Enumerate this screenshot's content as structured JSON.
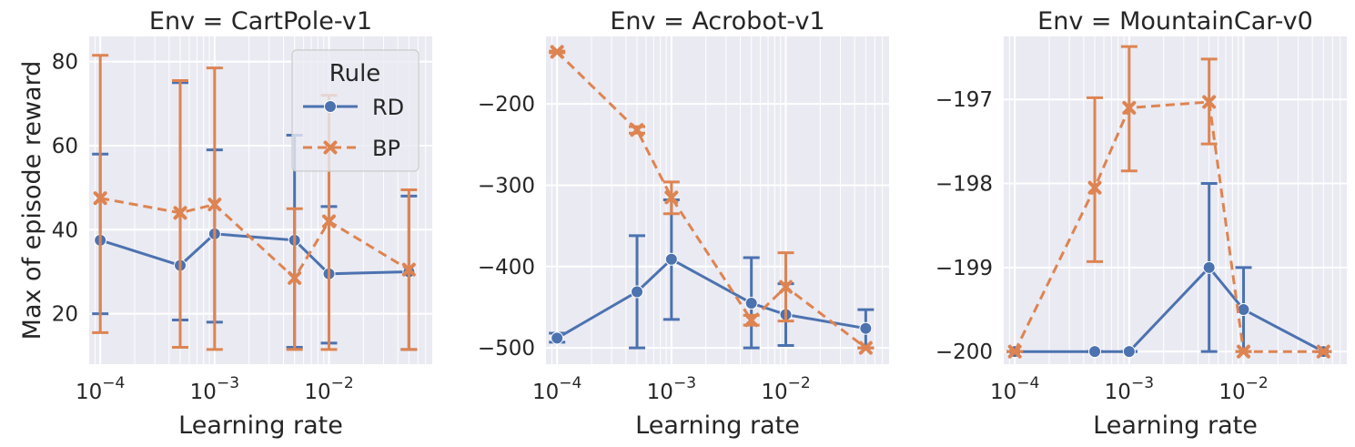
{
  "figure": {
    "ylabel": "Max of episode reward",
    "colors": {
      "RD": "#4c72b0",
      "BP": "#dd8452",
      "plot_bg": "#eaeaf2",
      "grid": "#ffffff"
    }
  },
  "legend": {
    "title": "Rule",
    "entries": [
      {
        "name": "RD",
        "marker": "circle",
        "style": "solid"
      },
      {
        "name": "BP",
        "marker": "x",
        "style": "dashed"
      }
    ],
    "placement": "upper-right of first panel"
  },
  "chart_data": [
    {
      "type": "line",
      "title": "Env = CartPole-v1",
      "xlabel": "Learning rate",
      "ylabel": "Max of episode reward",
      "xscale": "log",
      "xlim": [
        8e-05,
        0.08
      ],
      "ylim": [
        8,
        86
      ],
      "xticks": [
        {
          "value": 0.0001,
          "base": "10",
          "exp": "−4"
        },
        {
          "value": 0.001,
          "base": "10",
          "exp": "−3"
        },
        {
          "value": 0.01,
          "base": "10",
          "exp": "−2"
        }
      ],
      "yticks": [
        {
          "value": 20,
          "label": "20"
        },
        {
          "value": 40,
          "label": "40"
        },
        {
          "value": 60,
          "label": "60"
        },
        {
          "value": 80,
          "label": "80"
        }
      ],
      "x": [
        0.0001,
        0.0005,
        0.001,
        0.005,
        0.01,
        0.05
      ],
      "series": [
        {
          "name": "RD",
          "values": [
            37.5,
            31.5,
            39,
            37.5,
            29.5,
            30
          ],
          "err_low": [
            20,
            18.5,
            18,
            12,
            13,
            11.5
          ],
          "err_high": [
            58,
            75,
            59,
            62.5,
            45.5,
            48
          ]
        },
        {
          "name": "BP",
          "values": [
            47.5,
            44,
            46,
            28.5,
            42,
            30.5
          ],
          "err_low": [
            15.5,
            12,
            11.5,
            11.5,
            11.5,
            11.5
          ],
          "err_high": [
            81.5,
            75.5,
            78.5,
            45,
            72,
            49.5
          ]
        }
      ],
      "grid": true,
      "show_legend": true
    },
    {
      "type": "line",
      "title": "Env = Acrobot-v1",
      "xlabel": "Learning rate",
      "xscale": "log",
      "xlim": [
        8e-05,
        0.08
      ],
      "ylim": [
        -520,
        -117
      ],
      "xticks": [
        {
          "value": 0.0001,
          "base": "10",
          "exp": "−4"
        },
        {
          "value": 0.001,
          "base": "10",
          "exp": "−3"
        },
        {
          "value": 0.01,
          "base": "10",
          "exp": "−2"
        }
      ],
      "yticks": [
        {
          "value": -500,
          "label": "−500"
        },
        {
          "value": -400,
          "label": "−400"
        },
        {
          "value": -300,
          "label": "−300"
        },
        {
          "value": -200,
          "label": "−200"
        }
      ],
      "x": [
        0.0001,
        0.0005,
        0.001,
        0.005,
        0.01,
        0.05
      ],
      "series": [
        {
          "name": "RD",
          "values": [
            -488,
            -431,
            -391,
            -445,
            -459,
            -476
          ],
          "err_low": [
            -493,
            -500,
            -465,
            -500,
            -497,
            -500
          ],
          "err_high": [
            -482,
            -362,
            -318,
            -389,
            -421,
            -453
          ]
        },
        {
          "name": "BP",
          "values": [
            -136,
            -232,
            -315,
            -466,
            -425,
            -500
          ],
          "err_low": [
            -137,
            -236,
            -335,
            -472,
            -467,
            -500
          ],
          "err_high": [
            -135,
            -228,
            -296,
            -460,
            -383,
            -500
          ]
        }
      ],
      "grid": true,
      "show_legend": false
    },
    {
      "type": "line",
      "title": "Env = MountainCar-v0",
      "xlabel": "Learning rate",
      "xscale": "log",
      "xlim": [
        8e-05,
        0.08
      ],
      "ylim": [
        -200.15,
        -196.25
      ],
      "xticks": [
        {
          "value": 0.0001,
          "base": "10",
          "exp": "−4"
        },
        {
          "value": 0.001,
          "base": "10",
          "exp": "−3"
        },
        {
          "value": 0.01,
          "base": "10",
          "exp": "−2"
        }
      ],
      "yticks": [
        {
          "value": -200,
          "label": "−200"
        },
        {
          "value": -199,
          "label": "−199"
        },
        {
          "value": -198,
          "label": "−198"
        },
        {
          "value": -197,
          "label": "−197"
        }
      ],
      "x": [
        0.0001,
        0.0005,
        0.001,
        0.005,
        0.01,
        0.05
      ],
      "series": [
        {
          "name": "RD",
          "values": [
            -200,
            -200,
            -200,
            -199,
            -199.5,
            -200
          ],
          "err_low": [
            -200,
            -200,
            -200,
            -200,
            -200,
            -200
          ],
          "err_high": [
            -200,
            -200,
            -200,
            -198,
            -199,
            -200
          ]
        },
        {
          "name": "BP",
          "values": [
            -200,
            -198.05,
            -197.1,
            -197.03,
            -200,
            -200
          ],
          "err_low": [
            -200,
            -198.93,
            -197.85,
            -197.53,
            -200,
            -200
          ],
          "err_high": [
            -200,
            -196.98,
            -196.37,
            -196.52,
            -200,
            -200
          ]
        }
      ],
      "grid": true,
      "show_legend": false
    }
  ]
}
